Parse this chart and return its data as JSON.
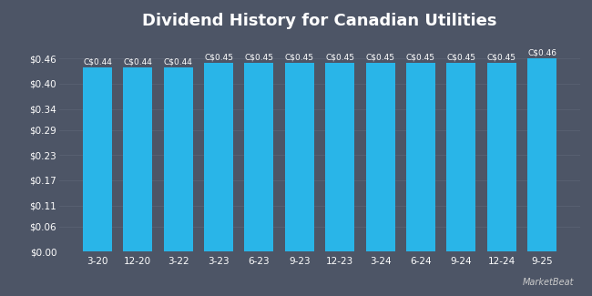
{
  "title": "Dividend History for Canadian Utilities",
  "categories": [
    "3-20",
    "12-20",
    "3-22",
    "3-23",
    "6-23",
    "9-23",
    "12-23",
    "3-24",
    "6-24",
    "9-24",
    "12-24",
    "9-25"
  ],
  "values": [
    0.44,
    0.44,
    0.44,
    0.45,
    0.45,
    0.45,
    0.45,
    0.45,
    0.45,
    0.45,
    0.45,
    0.46
  ],
  "bar_labels": [
    "C$0.44",
    "C$0.44",
    "C$0.44",
    "C$0.45",
    "C$0.45",
    "C$0.45",
    "C$0.45",
    "C$0.45",
    "C$0.45",
    "C$0.45",
    "C$0.45",
    "C$0.46"
  ],
  "bar_color": "#29b5e8",
  "background_color": "#4d5566",
  "plot_bg_color": "#4d5566",
  "text_color": "#ffffff",
  "grid_color": "#5c6475",
  "title_fontsize": 13,
  "label_fontsize": 6.5,
  "tick_fontsize": 7.5,
  "yticks": [
    0.0,
    0.06,
    0.11,
    0.17,
    0.23,
    0.29,
    0.34,
    0.4,
    0.46
  ],
  "ytick_labels": [
    "$0.00",
    "$0.06",
    "$0.11",
    "$0.17",
    "$0.23",
    "$0.29",
    "$0.34",
    "$0.40",
    "$0.46"
  ],
  "ylim": [
    0,
    0.515
  ],
  "bar_width": 0.72
}
